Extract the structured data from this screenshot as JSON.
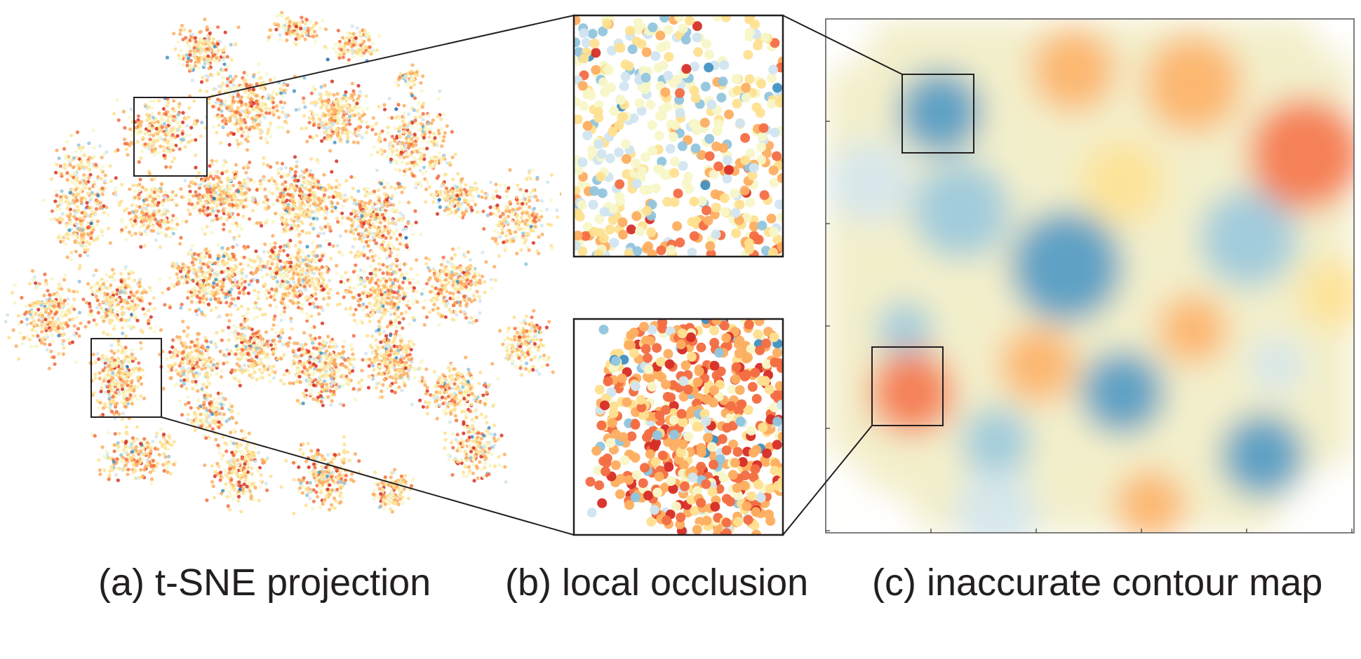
{
  "captions": {
    "a": "(a) t-SNE projection",
    "b": "(b) local occlusion",
    "c": "(c) inaccurate contour map"
  },
  "palette": [
    "#2166ac",
    "#4393c3",
    "#92c5de",
    "#d1e5f0",
    "#f7f7c8",
    "#fee090",
    "#fdae61",
    "#f46d43",
    "#d73027"
  ],
  "frame_color": "#231f20"
}
